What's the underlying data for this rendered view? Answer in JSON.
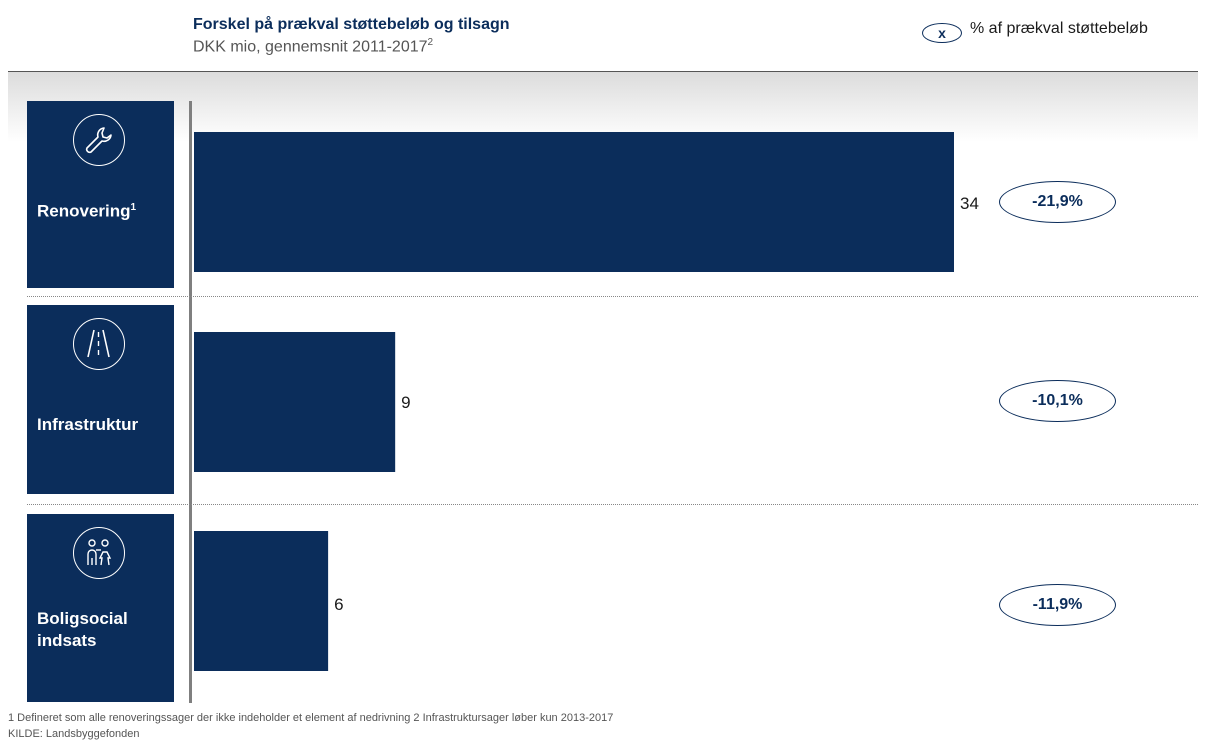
{
  "header": {
    "title": "Forskel på prækval støttebeløb og tilsagn",
    "subtitle": "DKK mio, gennemsnit 2011-2017",
    "subtitle_sup": "2"
  },
  "legend": {
    "marker": "x",
    "text": "% af prækval støttebeløb"
  },
  "colors": {
    "bar": "#0b2d5b",
    "accent": "#0b2d5b",
    "axis": "#7f7f7f"
  },
  "categories": [
    {
      "label": "Renovering",
      "sup": "1",
      "icon": "wrench-icon"
    },
    {
      "label": "Infrastruktur",
      "sup": "",
      "icon": "road-icon"
    },
    {
      "label": "Boligsocial indsats",
      "sup": "",
      "icon": "people-icon"
    }
  ],
  "chart_data": {
    "type": "bar",
    "orientation": "horizontal",
    "title": "Forskel på prækval støttebeløb og tilsagn",
    "subtitle": "DKK mio, gennemsnit 2011-2017",
    "categories": [
      "Renovering",
      "Infrastruktur",
      "Boligsocial indsats"
    ],
    "values": [
      34,
      9,
      6
    ],
    "value_labels": [
      "34",
      "9",
      "6"
    ],
    "percent_labels": [
      "-21,9%",
      "-10,1%",
      "-11,9%"
    ],
    "xlim": [
      0,
      34
    ],
    "grid": false
  },
  "footnotes": {
    "note": "1 Defineret som alle renoveringssager der ikke indeholder et element af nedrivning 2 Infrastruktursager løber kun 2013-2017",
    "source": "KILDE: Landsbyggefonden"
  }
}
